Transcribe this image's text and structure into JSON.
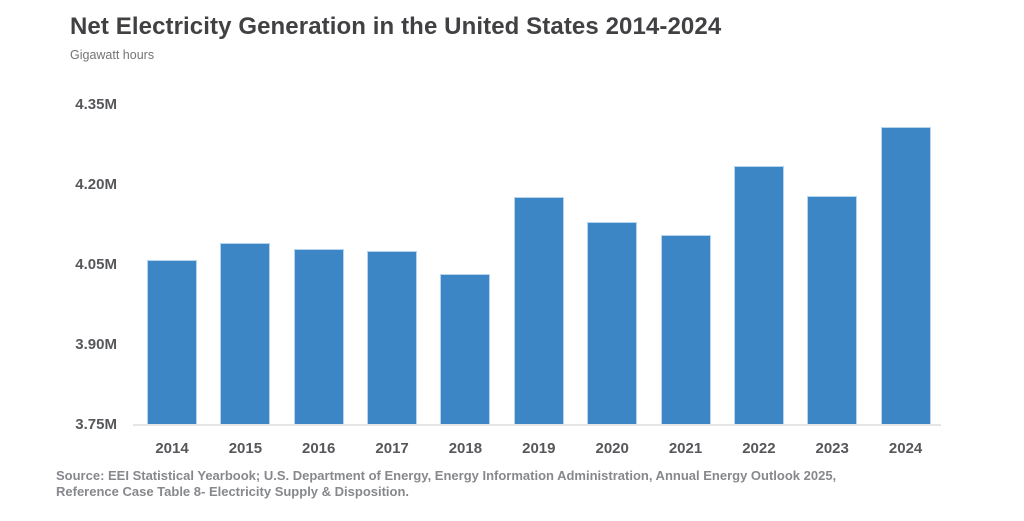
{
  "header": {
    "title": "Net Electricity Generation in the United States 2014-2024",
    "subtitle": "Gigawatt hours"
  },
  "source": {
    "line1": "Source: EEI Statistical Yearbook; U.S. Department of Energy, Energy Information Administration, Annual Energy Outlook 2025,",
    "line2": "Reference Case Table 8- Electricity Supply & Disposition."
  },
  "colors": {
    "bar_fill": "#3d86c6",
    "bar_border": "#b6d4ee",
    "axis_line": "#e4e5e6",
    "title_text": "#414144",
    "tick_text": "#56575a",
    "source_text": "#87888b",
    "background": "#ffffff"
  },
  "chart_data": {
    "type": "bar",
    "title": "Net Electricity Generation in the United States 2014-2024",
    "xlabel": "",
    "ylabel": "Gigawatt hours",
    "unit": "million gigawatt hours",
    "categories": [
      "2014",
      "2015",
      "2016",
      "2017",
      "2018",
      "2019",
      "2020",
      "2021",
      "2022",
      "2023",
      "2024"
    ],
    "values": [
      4.059,
      4.091,
      4.08,
      4.076,
      4.033,
      4.178,
      4.131,
      4.106,
      4.236,
      4.179,
      4.309
    ],
    "ylim": [
      3.75,
      4.35
    ],
    "ytick_labels_top_to_bottom": [
      "4.35M",
      "4.20M",
      "4.05M",
      "3.90M",
      "3.75M"
    ],
    "ytick_values": [
      4.35,
      4.2,
      4.05,
      3.9,
      3.75
    ],
    "grid": false,
    "legend_position": "none"
  }
}
